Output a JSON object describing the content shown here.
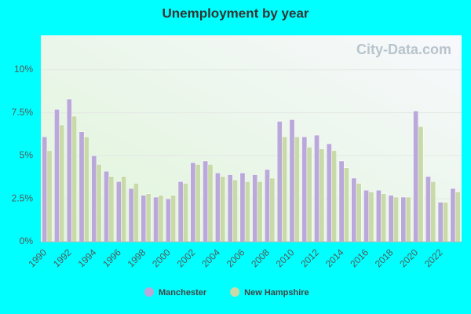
{
  "chart_data": {
    "type": "bar",
    "title": "Unemployment by year",
    "watermark": "City-Data.com",
    "categories": [
      "1990",
      null,
      "1992",
      null,
      "1994",
      null,
      "1996",
      null,
      "1998",
      null,
      "2000",
      null,
      "2002",
      null,
      "2004",
      null,
      "2006",
      null,
      "2008",
      null,
      "2010",
      null,
      "2012",
      null,
      "2014",
      null,
      "2016",
      null,
      "2018",
      null,
      "2020",
      null,
      "2022",
      null
    ],
    "series": [
      {
        "name": "Manchester",
        "color": "#b9a8d9",
        "values": [
          6.1,
          7.7,
          8.3,
          6.4,
          5.0,
          4.1,
          3.5,
          3.1,
          2.7,
          2.6,
          2.5,
          3.5,
          4.6,
          4.7,
          4.0,
          3.9,
          4.0,
          3.9,
          4.2,
          7.0,
          7.1,
          6.1,
          6.2,
          5.7,
          4.7,
          3.7,
          3.0,
          3.0,
          2.7,
          2.6,
          7.6,
          3.8,
          2.3,
          3.1
        ]
      },
      {
        "name": "New Hampshire",
        "color": "#c9daa9",
        "values": [
          5.3,
          6.8,
          7.3,
          6.1,
          4.5,
          3.8,
          3.8,
          3.4,
          2.8,
          2.7,
          2.7,
          3.4,
          4.5,
          4.5,
          3.8,
          3.6,
          3.5,
          3.5,
          3.7,
          6.1,
          6.1,
          5.5,
          5.4,
          5.3,
          4.3,
          3.4,
          2.9,
          2.8,
          2.6,
          2.6,
          6.7,
          3.5,
          2.3,
          2.9
        ]
      }
    ],
    "ylim": [
      0,
      12
    ],
    "yticks": [
      {
        "value": 0,
        "label": "0%"
      },
      {
        "value": 2.5,
        "label": "2.5%"
      },
      {
        "value": 5,
        "label": "5%"
      },
      {
        "value": 7.5,
        "label": "7.5%"
      },
      {
        "value": 10,
        "label": "10%"
      }
    ],
    "grid": true
  }
}
